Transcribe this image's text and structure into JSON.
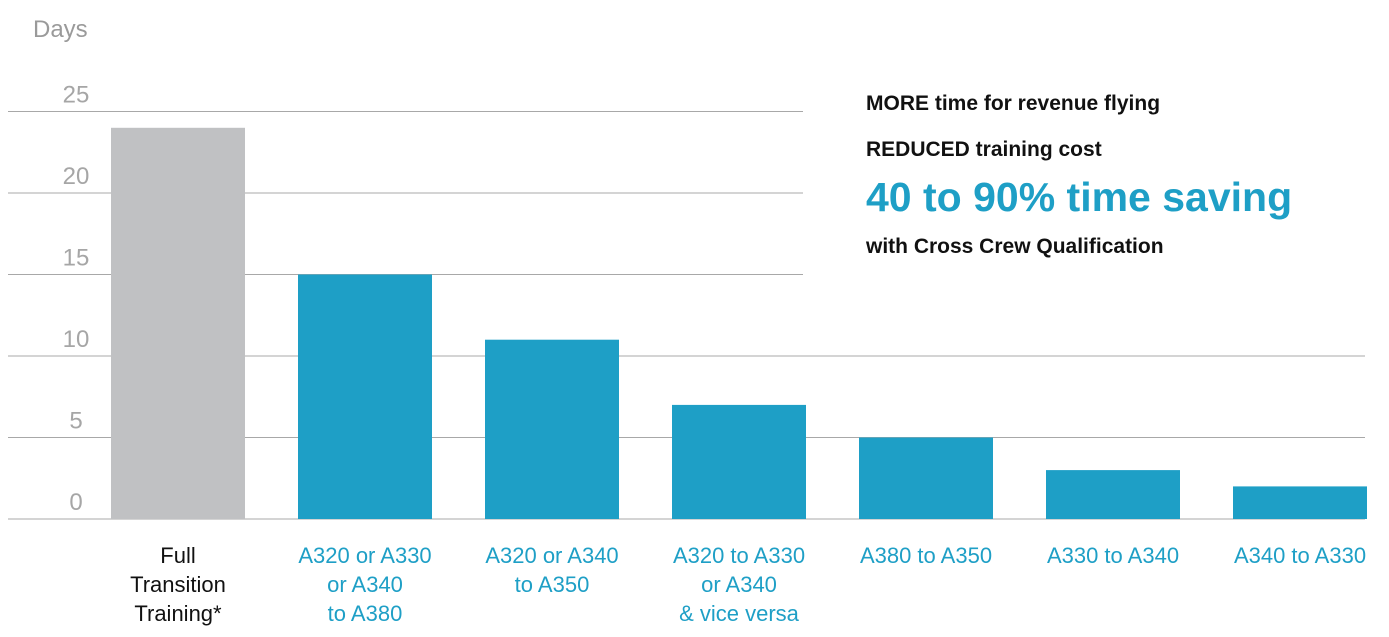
{
  "colors": {
    "highlight": "#1e9fc6",
    "baseline": "#c0c1c3",
    "label_default": "#111111",
    "grid": "#a8a8a8"
  },
  "callout": {
    "line1": "MORE time for revenue flying",
    "line2": "REDUCED training cost",
    "line3": "40 to 90% time saving",
    "line4": "with Cross Crew Qualification"
  },
  "chart_data": {
    "type": "bar",
    "title": "",
    "xlabel": "",
    "ylabel": "Days",
    "ylim": [
      0,
      25
    ],
    "yticks": [
      0,
      5,
      10,
      15,
      20,
      25
    ],
    "grid": true,
    "categories": [
      [
        "Full",
        "Transition",
        "Training*"
      ],
      [
        "A320 or A330",
        "or A340",
        "to A380"
      ],
      [
        "A320 or A340",
        "to A350"
      ],
      [
        "A320 to A330",
        "or A340",
        "& vice versa"
      ],
      [
        "A380 to A350"
      ],
      [
        "A330 to A340"
      ],
      [
        "A340 to A330"
      ]
    ],
    "values": [
      24,
      15,
      11,
      7,
      5,
      3,
      2
    ],
    "bar_colors": [
      "baseline",
      "highlight",
      "highlight",
      "highlight",
      "highlight",
      "highlight",
      "highlight"
    ]
  }
}
